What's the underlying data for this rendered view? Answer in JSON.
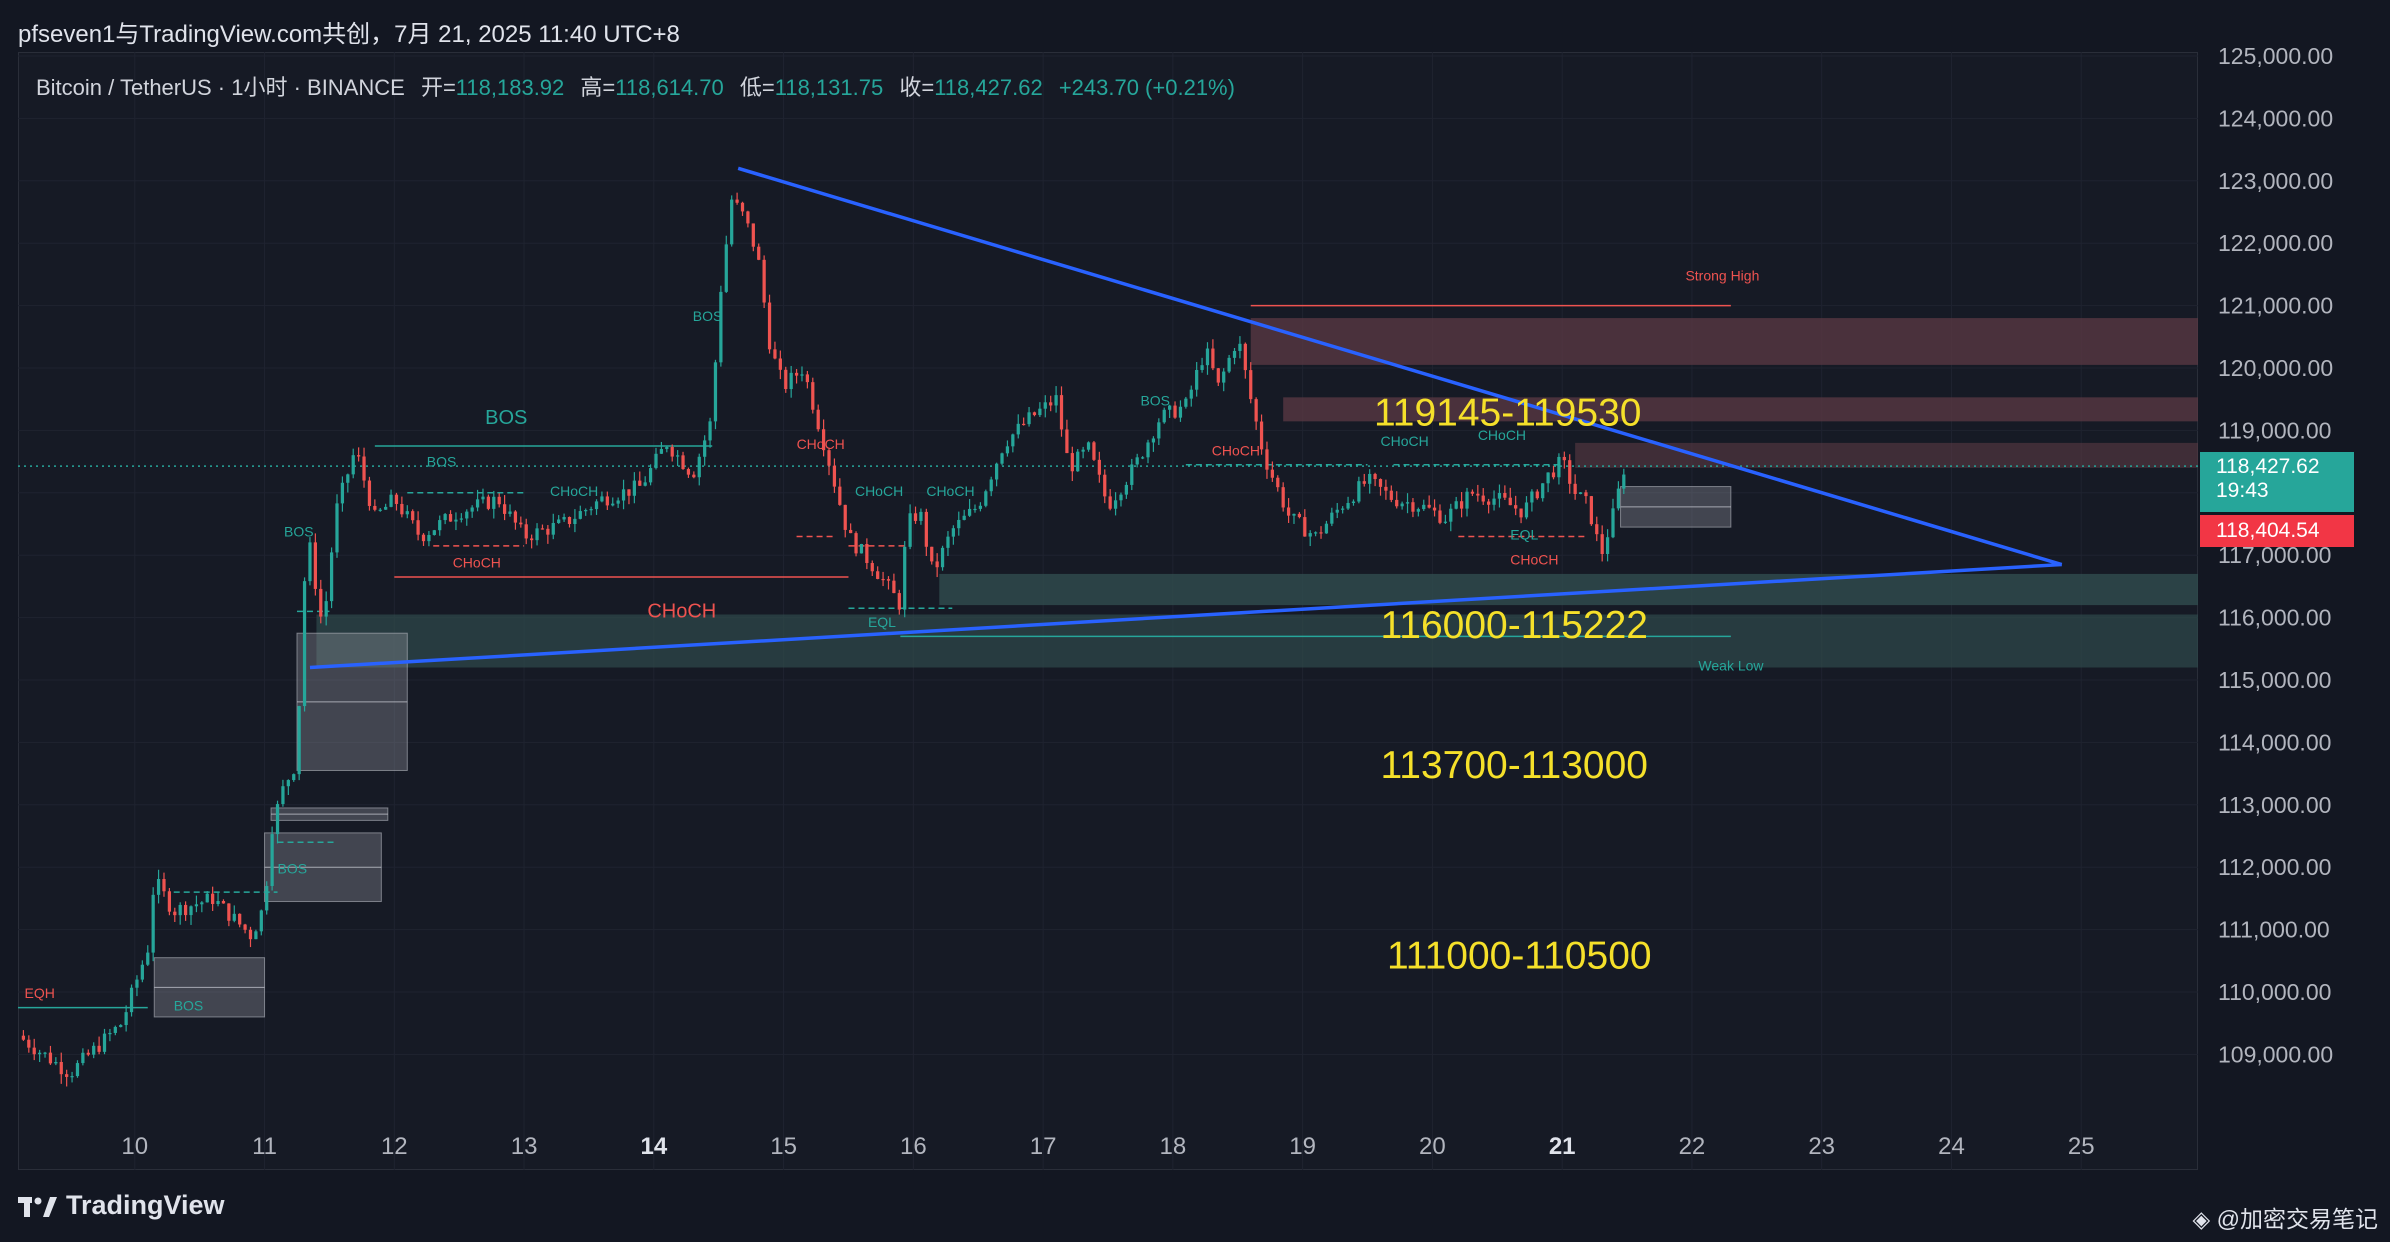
{
  "header": {
    "title": "pfseven1与TradingView.com共创，7月 21, 2025 11:40 UTC+8"
  },
  "legend": {
    "symbol": "Bitcoin / TetherUS · 1小时 · BINANCE",
    "open_label": "开=",
    "open": "118,183.92",
    "high_label": "高=",
    "high": "118,614.70",
    "low_label": "低=",
    "low": "118,131.75",
    "close_label": "收=",
    "close": "118,427.62",
    "change": "+243.70 (+0.21%)"
  },
  "price_tags": {
    "last_price": "118,427.62",
    "countdown": "19:43",
    "bid_price": "118,404.54"
  },
  "footer": {
    "brand": "TradingView",
    "watermark": "@加密交易笔记"
  },
  "colors": {
    "background": "#161a25",
    "up": "#26a69a",
    "down": "#ef5350",
    "triangle": "#2962ff",
    "zone_label": "#f5e02a",
    "supply_zone": "#5c3a44",
    "demand_zone": "#2f4a4c"
  },
  "chart_data": {
    "type": "candlestick",
    "symbol": "Bitcoin / TetherUS",
    "interval": "1小时",
    "exchange": "BINANCE",
    "x_tick_labels": [
      "10",
      "11",
      "12",
      "13",
      "14",
      "15",
      "16",
      "17",
      "18",
      "19",
      "20",
      "21",
      "22",
      "23",
      "24",
      "25"
    ],
    "y_tick_labels": [
      "125,000.00",
      "124,000.00",
      "123,000.00",
      "122,000.00",
      "121,000.00",
      "120,000.00",
      "119,000.00",
      "118,000.00",
      "117,000.00",
      "116,000.00",
      "115,000.00",
      "114,000.00",
      "113,000.00",
      "112,000.00",
      "111,000.00",
      "110,000.00",
      "109,000.00"
    ],
    "ylim": [
      108300,
      125100
    ],
    "xlim": [
      9.1,
      25.9
    ],
    "price_path": [
      [
        9.1,
        109300
      ],
      [
        9.5,
        108700
      ],
      [
        9.9,
        109500
      ],
      [
        10.1,
        110700
      ],
      [
        10.15,
        111800
      ],
      [
        10.3,
        111300
      ],
      [
        10.6,
        111500
      ],
      [
        10.9,
        110900
      ],
      [
        11.0,
        111400
      ],
      [
        11.05,
        112600
      ],
      [
        11.15,
        113300
      ],
      [
        11.25,
        113700
      ],
      [
        11.3,
        116500
      ],
      [
        11.35,
        117100
      ],
      [
        11.45,
        115800
      ],
      [
        11.55,
        117700
      ],
      [
        11.7,
        118700
      ],
      [
        11.85,
        117600
      ],
      [
        12.0,
        117900
      ],
      [
        12.2,
        117300
      ],
      [
        12.5,
        117700
      ],
      [
        12.8,
        117900
      ],
      [
        13.0,
        117300
      ],
      [
        13.3,
        117500
      ],
      [
        13.6,
        117900
      ],
      [
        13.9,
        118100
      ],
      [
        14.1,
        118800
      ],
      [
        14.3,
        118300
      ],
      [
        14.45,
        119200
      ],
      [
        14.5,
        121000
      ],
      [
        14.6,
        122700
      ],
      [
        14.7,
        122400
      ],
      [
        14.8,
        121800
      ],
      [
        14.9,
        120300
      ],
      [
        15.0,
        119700
      ],
      [
        15.15,
        120000
      ],
      [
        15.35,
        118500
      ],
      [
        15.5,
        117300
      ],
      [
        15.7,
        116800
      ],
      [
        15.9,
        116200
      ],
      [
        15.95,
        117500
      ],
      [
        16.05,
        117700
      ],
      [
        16.15,
        116700
      ],
      [
        16.3,
        117400
      ],
      [
        16.5,
        117800
      ],
      [
        16.7,
        118800
      ],
      [
        16.9,
        119200
      ],
      [
        17.1,
        119500
      ],
      [
        17.2,
        118400
      ],
      [
        17.35,
        118700
      ],
      [
        17.5,
        117800
      ],
      [
        17.7,
        118400
      ],
      [
        17.9,
        119200
      ],
      [
        18.1,
        119400
      ],
      [
        18.25,
        120300
      ],
      [
        18.35,
        119700
      ],
      [
        18.5,
        120500
      ],
      [
        18.6,
        119500
      ],
      [
        18.7,
        118600
      ],
      [
        18.8,
        118100
      ],
      [
        18.9,
        117600
      ],
      [
        19.1,
        117300
      ],
      [
        19.3,
        117800
      ],
      [
        19.5,
        118200
      ],
      [
        19.7,
        117900
      ],
      [
        19.9,
        117800
      ],
      [
        20.1,
        117600
      ],
      [
        20.3,
        118000
      ],
      [
        20.5,
        117900
      ],
      [
        20.7,
        117700
      ],
      [
        20.9,
        118300
      ],
      [
        21.0,
        118500
      ],
      [
        21.1,
        118000
      ],
      [
        21.2,
        117800
      ],
      [
        21.3,
        117000
      ],
      [
        21.4,
        117700
      ],
      [
        21.48,
        118430
      ]
    ],
    "zones": [
      {
        "label": "119145-119530",
        "kind": "supply",
        "from": 119145,
        "to": 119530
      },
      {
        "label": "116000-115222",
        "kind": "demand",
        "from": 115222,
        "to": 116000
      },
      {
        "label": "113700-113000",
        "kind": "level",
        "from": 113000,
        "to": 113700
      },
      {
        "label": "111000-110500",
        "kind": "level",
        "from": 110500,
        "to": 111000
      }
    ],
    "triangle": {
      "upper": [
        [
          14.65,
          123200
        ],
        [
          24.85,
          116850
        ]
      ],
      "lower": [
        [
          11.35,
          115200
        ],
        [
          24.85,
          116850
        ]
      ]
    },
    "annotations": [
      "BOS",
      "BOS",
      "BOS",
      "BOS",
      "BOS",
      "BOS",
      "BOS",
      "CHoCH",
      "CHoCH",
      "CHoCH",
      "CHoCH",
      "CHoCH",
      "CHoCH",
      "CHoCH",
      "CHoCH",
      "CHoCH",
      "CHoCH",
      "EQH",
      "EQL",
      "EQL",
      "Strong High",
      "Weak Low"
    ]
  }
}
